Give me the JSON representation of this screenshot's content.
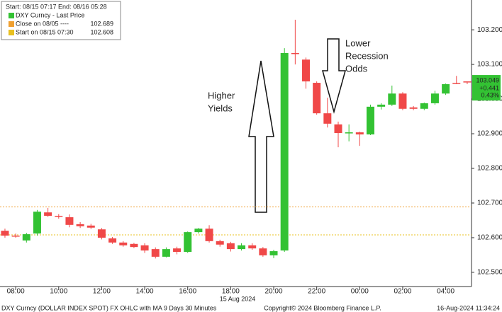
{
  "chart_data": {
    "type": "candlestick",
    "legend": {
      "range": "Start: 08/15 07:17 End: 08/16 05:28",
      "series_name": "DXY Curncy - Last Price",
      "close_label": "Close on 08/05 ----",
      "close_value": 102.689,
      "close_color": "#f0a030",
      "start_label": "Start on 08/15 07:30",
      "start_value": 102.608,
      "start_color": "#e8c020"
    },
    "up_color": "#33c233",
    "down_color": "#f04848",
    "x": [
      7.5,
      8,
      8.5,
      9,
      9.5,
      10,
      10.5,
      11,
      11.5,
      12,
      12.5,
      13,
      13.5,
      14,
      14.5,
      15,
      15.5,
      16,
      16.5,
      17,
      17.5,
      18,
      18.5,
      19,
      19.5,
      20,
      20.5,
      21,
      21.5,
      22,
      22.5,
      23,
      23.5,
      24,
      24.5,
      25,
      25.5,
      26,
      26.5,
      27,
      27.5,
      28,
      28.5,
      29
    ],
    "open": [
      102.62,
      102.606,
      102.592,
      102.612,
      102.673,
      102.663,
      102.659,
      102.639,
      102.635,
      102.624,
      102.598,
      102.586,
      102.582,
      102.578,
      102.567,
      102.545,
      102.569,
      102.559,
      102.616,
      102.626,
      102.59,
      102.584,
      102.567,
      102.578,
      102.569,
      102.549,
      102.563,
      103.133,
      103.114,
      103.047,
      102.959,
      102.927,
      102.902,
      102.904,
      102.898,
      102.978,
      102.984,
      103.016,
      102.976,
      102.972,
      102.988,
      103.016,
      103.047,
      103.051
    ],
    "high": [
      102.626,
      102.612,
      102.614,
      102.68,
      102.686,
      102.668,
      102.667,
      102.645,
      102.64,
      102.628,
      102.602,
      102.59,
      102.585,
      102.584,
      102.572,
      102.572,
      102.574,
      102.618,
      102.628,
      102.636,
      102.594,
      102.588,
      102.584,
      102.584,
      102.573,
      102.565,
      103.147,
      103.229,
      103.12,
      103.051,
      103.004,
      102.935,
      102.927,
      102.906,
      102.984,
      102.988,
      103.039,
      103.02,
      102.98,
      102.99,
      103.024,
      103.045,
      103.067,
      103.051
    ],
    "low": [
      102.6,
      102.6,
      102.586,
      102.606,
      102.66,
      102.655,
      102.63,
      102.628,
      102.625,
      102.595,
      102.582,
      102.574,
      102.57,
      102.556,
      102.54,
      102.543,
      102.552,
      102.556,
      102.612,
      102.586,
      102.574,
      102.56,
      102.563,
      102.565,
      102.545,
      102.541,
      102.559,
      103.1,
      103.03,
      102.955,
      102.918,
      102.861,
      102.878,
      102.865,
      102.896,
      102.97,
      102.98,
      102.968,
      102.968,
      102.968,
      102.984,
      103.012,
      103.043,
      103.043
    ],
    "close": [
      102.606,
      102.604,
      102.61,
      102.675,
      102.663,
      102.66,
      102.637,
      102.633,
      102.629,
      102.6,
      102.586,
      102.578,
      102.573,
      102.563,
      102.545,
      102.567,
      102.559,
      102.616,
      102.626,
      102.59,
      102.58,
      102.567,
      102.578,
      102.569,
      102.549,
      102.561,
      103.133,
      103.131,
      103.051,
      102.959,
      102.929,
      102.902,
      102.904,
      102.898,
      102.978,
      102.984,
      103.016,
      102.972,
      102.972,
      102.988,
      103.016,
      103.043,
      103.045,
      103.049
    ],
    "last_price": 103.049,
    "change": "+0.441",
    "change_pct": "0.43%",
    "xlim": [
      7.27,
      29.2
    ],
    "ylim": [
      102.459,
      103.286
    ],
    "xticks": [
      {
        "value": 8,
        "label": "08:00"
      },
      {
        "value": 10,
        "label": "10:00"
      },
      {
        "value": 12,
        "label": "12:00"
      },
      {
        "value": 14,
        "label": "14:00"
      },
      {
        "value": 16,
        "label": "16:00"
      },
      {
        "value": 18,
        "label": "18:00"
      },
      {
        "value": 20,
        "label": "20:00"
      },
      {
        "value": 22,
        "label": "22:00"
      },
      {
        "value": 24,
        "label": "00:00"
      },
      {
        "value": 26,
        "label": "02:00"
      },
      {
        "value": 28,
        "label": "04:00"
      }
    ],
    "date_label": "15 Aug 2024",
    "yticks": [
      {
        "value": 102.5,
        "label": "102.500"
      },
      {
        "value": 102.6,
        "label": "102.600"
      },
      {
        "value": 102.7,
        "label": "102.700"
      },
      {
        "value": 102.8,
        "label": "102.800"
      },
      {
        "value": 102.9,
        "label": "102.900"
      },
      {
        "value": 103.0,
        "label": "103.000"
      },
      {
        "value": 103.1,
        "label": "103.100"
      },
      {
        "value": 103.2,
        "label": "103.200"
      }
    ],
    "annotations": [
      [
        "Higher",
        "Yields"
      ],
      [
        "Lower",
        "Recession",
        "Odds"
      ]
    ],
    "footer": {
      "left": "DXY Curncy (DOLLAR INDEX SPOT) FX OHLC with MA 9 Days 30 Minutes",
      "center": "Copyright© 2024 Bloomberg Finance L.P.",
      "right": "16-Aug-2024 11:34:24"
    }
  }
}
